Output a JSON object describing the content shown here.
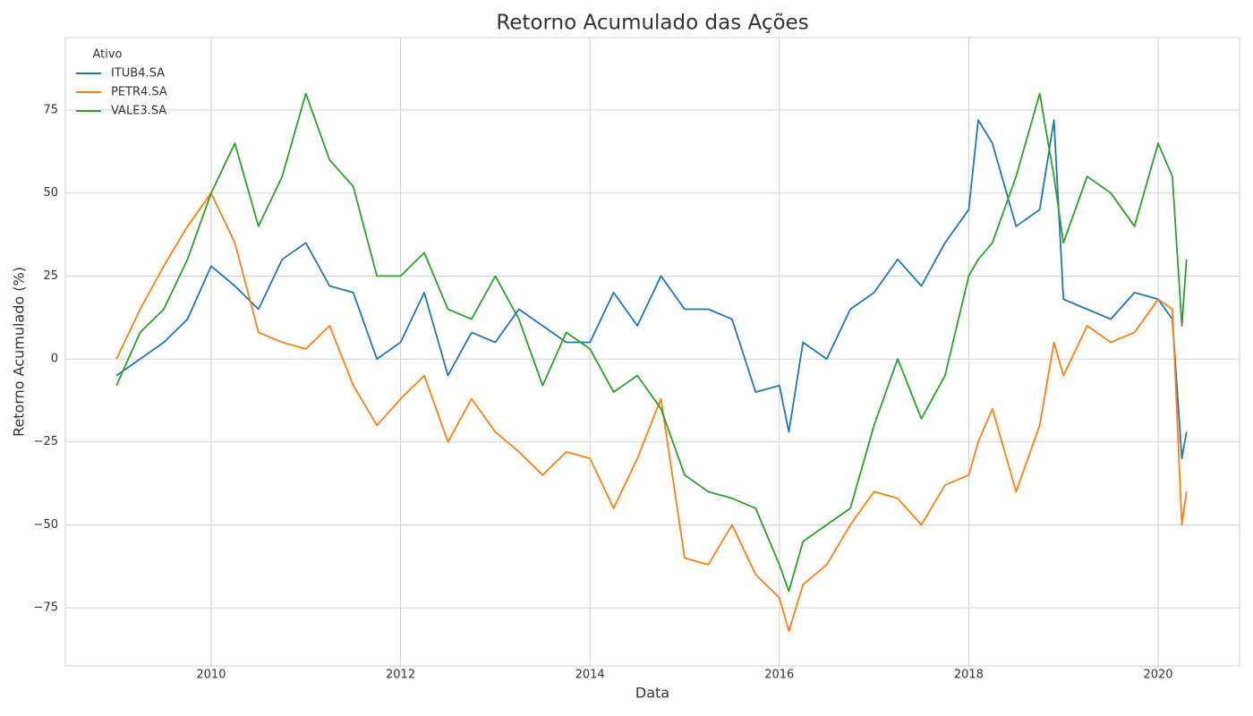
{
  "chart_data": {
    "type": "line",
    "title": "Retorno Acumulado das Ações",
    "x_label": "Data",
    "y_label": "Retorno Acumulado (%)",
    "legend_title": "Ativo",
    "legend": "upper left",
    "grid": true,
    "xlim": [
      2008.46,
      2020.86
    ],
    "xticks": [
      2010,
      2012,
      2014,
      2016,
      2018,
      2020
    ],
    "ylim": [
      -92.5,
      96.85
    ],
    "yticks": [
      {
        "value": -75,
        "label": "−75"
      },
      {
        "value": -50,
        "label": "−50"
      },
      {
        "value": -25,
        "label": "−25"
      },
      0,
      25,
      50,
      75
    ],
    "x": [
      2009.0,
      2009.25,
      2009.5,
      2009.75,
      2010.0,
      2010.25,
      2010.5,
      2010.75,
      2011.0,
      2011.25,
      2011.5,
      2011.75,
      2012.0,
      2012.25,
      2012.5,
      2012.75,
      2013.0,
      2013.25,
      2013.5,
      2013.75,
      2014.0,
      2014.25,
      2014.5,
      2014.75,
      2015.0,
      2015.25,
      2015.5,
      2015.75,
      2016.0,
      2016.1,
      2016.25,
      2016.5,
      2016.75,
      2017.0,
      2017.25,
      2017.5,
      2017.75,
      2018.0,
      2018.1,
      2018.25,
      2018.5,
      2018.75,
      2018.9,
      2019.0,
      2019.25,
      2019.5,
      2019.75,
      2020.0,
      2020.15,
      2020.25,
      2020.3
    ],
    "series": [
      {
        "name": "ITUB4.SA",
        "color": "#1f77b4",
        "values": [
          -5,
          0,
          5,
          12,
          28,
          22,
          15,
          30,
          35,
          22,
          20,
          0,
          5,
          20,
          -5,
          8,
          5,
          15,
          10,
          5,
          5,
          20,
          10,
          25,
          15,
          15,
          12,
          -10,
          -8,
          -22,
          5,
          0,
          15,
          20,
          30,
          22,
          35,
          45,
          72,
          65,
          40,
          45,
          72,
          18,
          15,
          12,
          20,
          18,
          12,
          -30,
          -22
        ]
      },
      {
        "name": "PETR4.SA",
        "color": "#ff7f0e",
        "values": [
          0,
          15,
          28,
          40,
          50,
          35,
          8,
          5,
          3,
          10,
          -8,
          -20,
          -12,
          -5,
          -25,
          -12,
          -22,
          -28,
          -35,
          -28,
          -30,
          -45,
          -30,
          -12,
          -60,
          -62,
          -50,
          -65,
          -72,
          -82,
          -68,
          -62,
          -50,
          -40,
          -42,
          -50,
          -38,
          -35,
          -25,
          -15,
          -40,
          -20,
          5,
          -5,
          10,
          5,
          8,
          18,
          15,
          -50,
          -40
        ]
      },
      {
        "name": "VALE3.SA",
        "color": "#2ca02c",
        "values": [
          -8,
          8,
          15,
          30,
          50,
          65,
          40,
          55,
          80,
          60,
          52,
          25,
          25,
          32,
          15,
          12,
          25,
          12,
          -8,
          8,
          3,
          -10,
          -5,
          -15,
          -35,
          -40,
          -42,
          -45,
          -62,
          -70,
          -55,
          -50,
          -45,
          -20,
          0,
          -18,
          -5,
          25,
          30,
          35,
          55,
          80,
          55,
          35,
          55,
          50,
          40,
          65,
          55,
          10,
          30
        ]
      }
    ]
  }
}
